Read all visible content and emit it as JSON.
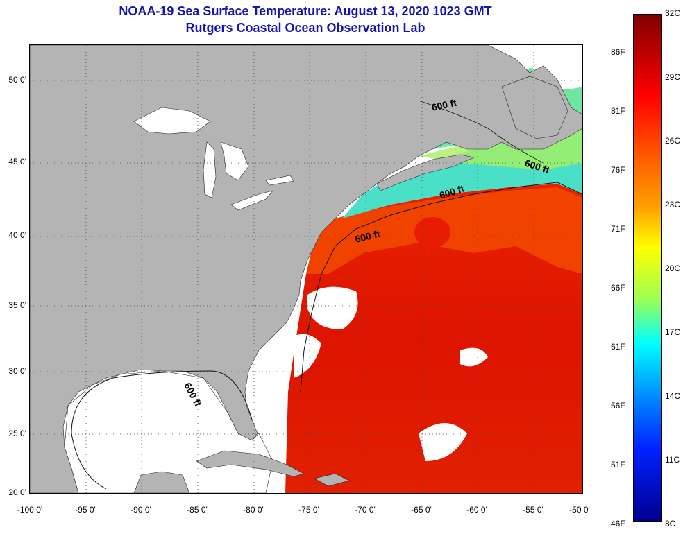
{
  "title": {
    "line1": "NOAA-19 Sea Surface Temperature:  August 13, 2020 1023 GMT",
    "line2": "Rutgers Coastal Ocean Observation Lab"
  },
  "map": {
    "lat_ticks": [
      "50 0'",
      "45 0'",
      "40 0'",
      "35 0'",
      "30 0'",
      "25 0'",
      "20 0'"
    ],
    "lon_ticks": [
      "-100 0'",
      "-95 0'",
      "-90 0'",
      "-85 0'",
      "-80 0'",
      "-75 0'",
      "-70 0'",
      "-65 0'",
      "-60 0'",
      "-55 0'",
      "-50 0'"
    ],
    "isobath_labels": [
      "600 ft",
      "600 ft",
      "600 ft",
      "600 ft",
      "600 ft"
    ],
    "colors": {
      "land": "#b4b4b4",
      "no_data": "#ffffff",
      "grid": "#444444"
    }
  },
  "colorbar": {
    "fahrenheit": [
      "86F",
      "81F",
      "76F",
      "71F",
      "66F",
      "61F",
      "56F",
      "51F",
      "46F"
    ],
    "celsius": [
      "32C",
      "29C",
      "26C",
      "23C",
      "20C",
      "17C",
      "14C",
      "11C",
      "8C"
    ]
  }
}
